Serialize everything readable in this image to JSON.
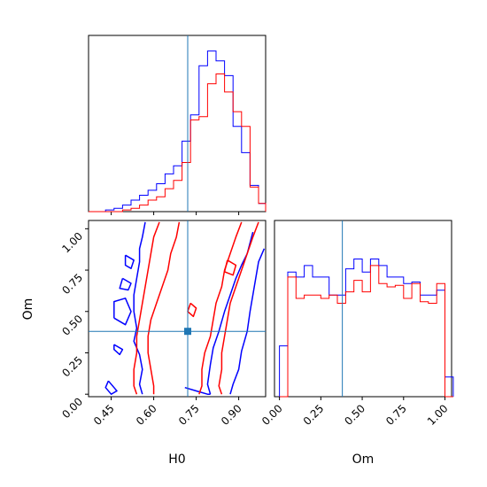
{
  "chart_data": {
    "type": "corner",
    "parameters": [
      "H0",
      "Om"
    ],
    "axis_labels": {
      "x_left": "H0",
      "x_right": "Om",
      "y_lower": "Om"
    },
    "truth": {
      "H0": 0.72,
      "Om": 0.38
    },
    "series": [
      {
        "color": "#0000ff"
      },
      {
        "color": "#ff0000"
      }
    ],
    "truth_color": "#1f77b4",
    "panels": {
      "h0_hist": {
        "xlim": [
          0.37,
          0.995
        ],
        "bin_edges": [
          0.37,
          0.4,
          0.43,
          0.46,
          0.49,
          0.52,
          0.55,
          0.58,
          0.61,
          0.64,
          0.67,
          0.7,
          0.73,
          0.76,
          0.79,
          0.82,
          0.85,
          0.88,
          0.91,
          0.94,
          0.97,
          0.995
        ],
        "ymax": 1.0,
        "blue": [
          0.0,
          0.0,
          0.01,
          0.02,
          0.04,
          0.07,
          0.1,
          0.13,
          0.17,
          0.23,
          0.28,
          0.43,
          0.59,
          0.89,
          0.98,
          0.92,
          0.83,
          0.52,
          0.36,
          0.16,
          0.05
        ],
        "red": [
          0.0,
          0.0,
          0.0,
          0.0,
          0.01,
          0.02,
          0.04,
          0.07,
          0.09,
          0.14,
          0.19,
          0.3,
          0.56,
          0.58,
          0.78,
          0.84,
          0.73,
          0.61,
          0.52,
          0.15,
          0.05
        ]
      },
      "om_hist": {
        "xlim": [
          -0.03,
          1.04
        ],
        "xticks": [
          0.0,
          0.25,
          0.5,
          0.75,
          1.0
        ],
        "xticklabels": [
          "0.00",
          "0.25",
          "0.50",
          "0.75",
          "1.00"
        ],
        "bin_edges": [
          0.0,
          0.05,
          0.1,
          0.15,
          0.2,
          0.25,
          0.3,
          0.35,
          0.4,
          0.45,
          0.5,
          0.55,
          0.6,
          0.65,
          0.7,
          0.75,
          0.8,
          0.85,
          0.9,
          0.95,
          1.0,
          1.05
        ],
        "ymax": 1.0,
        "blue": [
          0.31,
          0.76,
          0.73,
          0.8,
          0.73,
          0.73,
          0.62,
          0.62,
          0.78,
          0.84,
          0.76,
          0.84,
          0.8,
          0.73,
          0.73,
          0.69,
          0.7,
          0.62,
          0.62,
          0.65,
          0.12
        ],
        "red": [
          0.0,
          0.73,
          0.6,
          0.62,
          0.62,
          0.6,
          0.62,
          0.57,
          0.64,
          0.71,
          0.64,
          0.8,
          0.69,
          0.67,
          0.68,
          0.6,
          0.69,
          0.58,
          0.57,
          0.69,
          0.0
        ]
      },
      "scatter_2d": {
        "xlim": [
          0.37,
          0.995
        ],
        "ylim": [
          -0.015,
          1.05
        ],
        "xticks": [
          0.45,
          0.6,
          0.75,
          0.9
        ],
        "xticklabels": [
          "0.45",
          "0.60",
          "0.75",
          "0.90"
        ],
        "yticks": [
          0.0,
          0.25,
          0.5,
          0.75,
          1.0
        ],
        "yticklabels": [
          "0.00",
          "0.25",
          "0.50",
          "0.75",
          "1.00"
        ],
        "contours": [
          {
            "series": 0,
            "points": [
              [
                0.57,
                1.04
              ],
              [
                0.56,
                0.95
              ],
              [
                0.55,
                0.88
              ],
              [
                0.55,
                0.8
              ],
              [
                0.54,
                0.7
              ],
              [
                0.53,
                0.6
              ],
              [
                0.53,
                0.5
              ],
              [
                0.54,
                0.4
              ],
              [
                0.53,
                0.32
              ],
              [
                0.55,
                0.24
              ],
              [
                0.56,
                0.15
              ],
              [
                0.55,
                0.06
              ],
              [
                0.56,
                0.0
              ]
            ]
          },
          {
            "series": 0,
            "points": [
              [
                0.99,
                0.88
              ],
              [
                0.97,
                0.8
              ],
              [
                0.96,
                0.7
              ],
              [
                0.95,
                0.6
              ],
              [
                0.94,
                0.5
              ],
              [
                0.93,
                0.38
              ],
              [
                0.91,
                0.26
              ],
              [
                0.9,
                0.15
              ],
              [
                0.88,
                0.06
              ],
              [
                0.87,
                0.0
              ]
            ]
          },
          {
            "series": 0,
            "points": [
              [
                0.95,
                0.98
              ],
              [
                0.93,
                0.85
              ],
              [
                0.91,
                0.78
              ],
              [
                0.89,
                0.7
              ],
              [
                0.87,
                0.6
              ],
              [
                0.85,
                0.5
              ],
              [
                0.83,
                0.38
              ],
              [
                0.81,
                0.28
              ],
              [
                0.8,
                0.18
              ],
              [
                0.79,
                0.06
              ],
              [
                0.8,
                0.0
              ]
            ]
          },
          {
            "series": 0,
            "points": [
              [
                0.71,
                0.04
              ],
              [
                0.75,
                0.02
              ],
              [
                0.79,
                0.0
              ],
              [
                0.8,
                0.0
              ]
            ]
          },
          {
            "series": 0,
            "points": [
              [
                0.5,
                0.84
              ],
              [
                0.53,
                0.81
              ],
              [
                0.52,
                0.76
              ],
              [
                0.5,
                0.78
              ],
              [
                0.5,
                0.84
              ]
            ]
          },
          {
            "series": 0,
            "points": [
              [
                0.49,
                0.7
              ],
              [
                0.52,
                0.67
              ],
              [
                0.51,
                0.63
              ],
              [
                0.48,
                0.64
              ],
              [
                0.49,
                0.7
              ]
            ]
          },
          {
            "series": 0,
            "points": [
              [
                0.46,
                0.46
              ],
              [
                0.5,
                0.42
              ],
              [
                0.52,
                0.5
              ],
              [
                0.5,
                0.58
              ],
              [
                0.46,
                0.56
              ],
              [
                0.46,
                0.46
              ]
            ]
          },
          {
            "series": 0,
            "points": [
              [
                0.46,
                0.3
              ],
              [
                0.49,
                0.27
              ],
              [
                0.48,
                0.24
              ],
              [
                0.46,
                0.27
              ],
              [
                0.46,
                0.3
              ]
            ]
          },
          {
            "series": 0,
            "points": [
              [
                0.44,
                0.08
              ],
              [
                0.46,
                0.04
              ],
              [
                0.47,
                0.02
              ],
              [
                0.45,
                0.0
              ],
              [
                0.43,
                0.04
              ],
              [
                0.44,
                0.08
              ]
            ]
          },
          {
            "series": 1,
            "points": [
              [
                0.62,
                1.04
              ],
              [
                0.6,
                0.95
              ],
              [
                0.59,
                0.85
              ],
              [
                0.58,
                0.75
              ],
              [
                0.57,
                0.65
              ],
              [
                0.56,
                0.55
              ],
              [
                0.55,
                0.45
              ],
              [
                0.54,
                0.35
              ],
              [
                0.54,
                0.25
              ],
              [
                0.53,
                0.15
              ],
              [
                0.53,
                0.05
              ],
              [
                0.54,
                0.0
              ]
            ]
          },
          {
            "series": 1,
            "points": [
              [
                0.69,
                1.04
              ],
              [
                0.68,
                0.95
              ],
              [
                0.66,
                0.85
              ],
              [
                0.65,
                0.75
              ],
              [
                0.63,
                0.65
              ],
              [
                0.61,
                0.55
              ],
              [
                0.59,
                0.45
              ],
              [
                0.58,
                0.35
              ],
              [
                0.58,
                0.25
              ],
              [
                0.59,
                0.15
              ],
              [
                0.6,
                0.05
              ],
              [
                0.6,
                0.0
              ]
            ]
          },
          {
            "series": 1,
            "points": [
              [
                0.97,
                1.04
              ],
              [
                0.95,
                0.95
              ],
              [
                0.93,
                0.85
              ],
              [
                0.91,
                0.75
              ],
              [
                0.89,
                0.65
              ],
              [
                0.87,
                0.55
              ],
              [
                0.86,
                0.45
              ],
              [
                0.85,
                0.35
              ],
              [
                0.84,
                0.25
              ],
              [
                0.84,
                0.15
              ],
              [
                0.83,
                0.05
              ],
              [
                0.84,
                0.0
              ]
            ]
          },
          {
            "series": 1,
            "points": [
              [
                0.91,
                1.04
              ],
              [
                0.89,
                0.95
              ],
              [
                0.87,
                0.85
              ],
              [
                0.85,
                0.75
              ],
              [
                0.84,
                0.65
              ],
              [
                0.82,
                0.55
              ],
              [
                0.81,
                0.45
              ],
              [
                0.8,
                0.35
              ],
              [
                0.78,
                0.25
              ],
              [
                0.77,
                0.15
              ],
              [
                0.77,
                0.05
              ],
              [
                0.76,
                0.0
              ]
            ]
          },
          {
            "series": 1,
            "points": [
              [
                0.73,
                0.55
              ],
              [
                0.75,
                0.52
              ],
              [
                0.74,
                0.47
              ],
              [
                0.72,
                0.5
              ],
              [
                0.73,
                0.55
              ]
            ]
          },
          {
            "series": 1,
            "points": [
              [
                0.86,
                0.81
              ],
              [
                0.89,
                0.78
              ],
              [
                0.88,
                0.72
              ],
              [
                0.85,
                0.74
              ],
              [
                0.86,
                0.81
              ]
            ]
          }
        ]
      }
    }
  }
}
